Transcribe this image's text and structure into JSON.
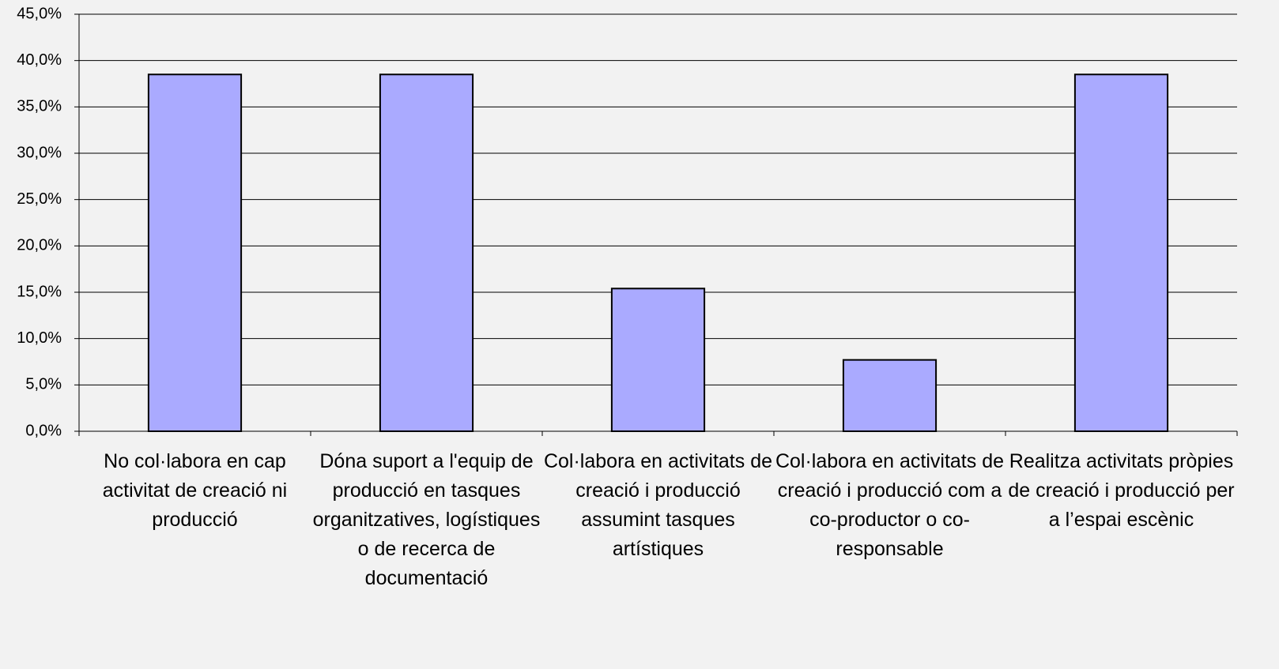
{
  "chart_data": {
    "type": "bar",
    "categories": [
      "No col·labora en cap activitat de creació ni producció",
      "Dóna suport a l'equip de producció en tasques organitzatives, logístiques o de recerca de documentació",
      "Col·labora en activitats de creació i producció assumint tasques artístiques",
      "Col·labora en activitats de creació i producció com a co-productor o co-responsable",
      "Realitza activitats pròpies de creació i producció per a l’espai escènic"
    ],
    "values": [
      38.5,
      38.5,
      15.4,
      7.7,
      38.5
    ],
    "color": "#aaaaff",
    "ylim": [
      0,
      45
    ],
    "yticks": [
      {
        "value": 0,
        "label": "0,0%"
      },
      {
        "value": 5,
        "label": "5,0%"
      },
      {
        "value": 10,
        "label": "10,0%"
      },
      {
        "value": 15,
        "label": "15,0%"
      },
      {
        "value": 20,
        "label": "20,0%"
      },
      {
        "value": 25,
        "label": "25,0%"
      },
      {
        "value": 30,
        "label": "30,0%"
      },
      {
        "value": 35,
        "label": "35,0%"
      },
      {
        "value": 40,
        "label": "40,0%"
      },
      {
        "value": 45,
        "label": "45,0%"
      }
    ],
    "grid": true
  }
}
